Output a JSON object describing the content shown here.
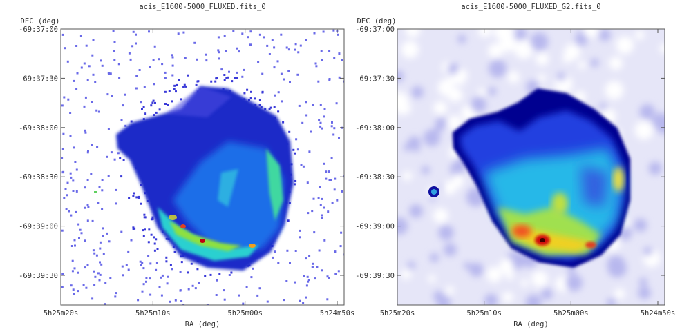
{
  "panels": [
    {
      "title": "acis_E1600-5000_FLUXED.fits_0",
      "y_label": "DEC (deg)",
      "x_label": "RA (deg)",
      "y_ticks": [
        "-69:37:00",
        "-69:37:30",
        "-69:38:00",
        "-69:38:30",
        "-69:39:00",
        "-69:39:30"
      ],
      "x_ticks": [
        "5h25m20s",
        "5h25m10s",
        "5h25m00s",
        "5h24m50s"
      ]
    },
    {
      "title": "acis_E1600-5000_FLUXED_G2.fits_0",
      "y_label": "DEC (deg)",
      "x_label": "RA (deg)",
      "y_ticks": [
        "-69:37:00",
        "-69:37:30",
        "-69:38:00",
        "-69:38:30",
        "-69:39:00",
        "-69:39:30"
      ],
      "x_ticks": [
        "5h25m20s",
        "5h25m10s",
        "5h25m00s",
        "5h24m50s"
      ]
    }
  ]
}
